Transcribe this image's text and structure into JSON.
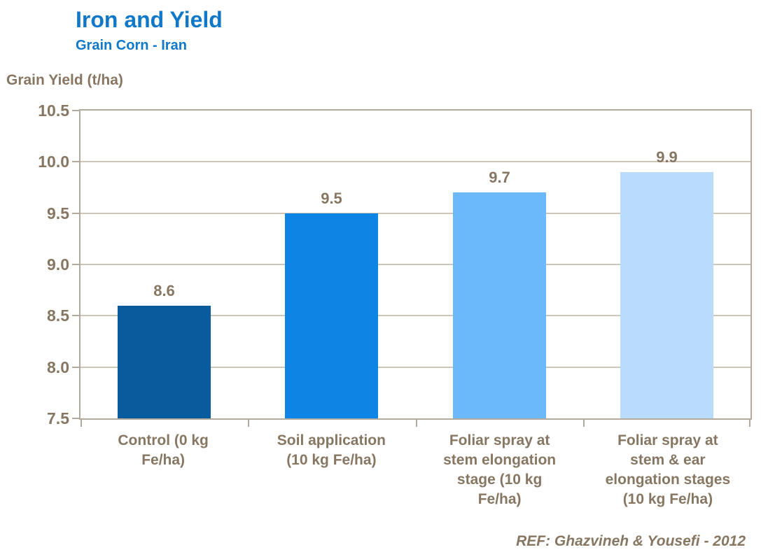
{
  "colors": {
    "title_blue": "#1078c8",
    "text_brown": "#877762",
    "gridline": "#cdc5ba",
    "frame": "#b3aa9e",
    "background": "#ffffff"
  },
  "chart_data": {
    "type": "bar",
    "title": "Iron and Yield",
    "subtitle": "Grain Corn - Iran",
    "ylabel": "Grain Yield (t/ha)",
    "xlabel": "",
    "categories": [
      "Control (0 kg Fe/ha)",
      "Soil application (10 kg Fe/ha)",
      "Foliar spray at stem elongation stage (10 kg Fe/ha)",
      "Foliar spray at stem & ear elongation stages (10 kg Fe/ha)"
    ],
    "category_lines": [
      [
        "Control (0 kg",
        "Fe/ha)"
      ],
      [
        "Soil application",
        "(10 kg Fe/ha)"
      ],
      [
        "Foliar spray at",
        "stem elongation",
        "stage (10 kg",
        "Fe/ha)"
      ],
      [
        "Foliar spray at",
        "stem & ear",
        "elongation stages",
        "(10 kg Fe/ha)"
      ]
    ],
    "values": [
      8.6,
      9.5,
      9.7,
      9.9
    ],
    "data_labels": [
      "8.6",
      "9.5",
      "9.7",
      "9.9"
    ],
    "bar_colors": [
      "#0a5a9e",
      "#0c85e4",
      "#6bb9fb",
      "#b9dcfc"
    ],
    "ylim": [
      7.5,
      10.5
    ],
    "yticks": [
      10.5,
      10.0,
      9.5,
      9.0,
      8.5,
      8.0,
      7.5
    ],
    "ytick_labels": [
      "10.5",
      "10.0",
      "9.5",
      "9.0",
      "8.5",
      "8.0",
      "7.5"
    ],
    "grid": true,
    "legend": false
  },
  "footer": {
    "reference": "REF: Ghazvineh & Yousefi - 2012"
  }
}
